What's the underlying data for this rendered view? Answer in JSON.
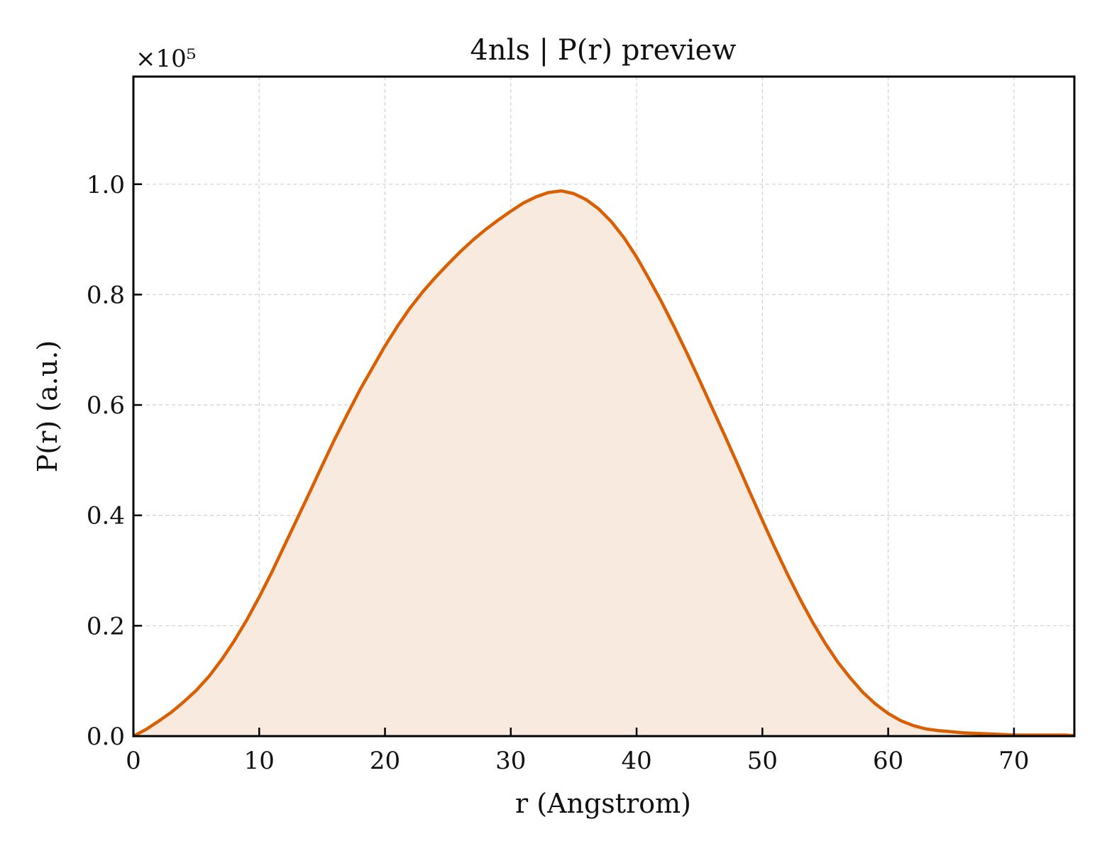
{
  "chart_data": {
    "type": "area",
    "title": "4nls | P(r) preview",
    "xlabel": "r (Angstrom)",
    "ylabel": "P(r) (a.u.)",
    "y_scale_label": "×10⁵",
    "xlim": [
      0,
      74.8
    ],
    "ylim": [
      0,
      1.195
    ],
    "x_ticks": [
      0,
      10,
      20,
      30,
      40,
      50,
      60,
      70
    ],
    "y_ticks": [
      0.0,
      0.2,
      0.4,
      0.6,
      0.8,
      1.0
    ],
    "x_tick_labels": [
      "0",
      "10",
      "20",
      "30",
      "40",
      "50",
      "60",
      "70"
    ],
    "y_tick_labels": [
      "0.0",
      "0.2",
      "0.4",
      "0.6",
      "0.8",
      "1.0"
    ],
    "grid": true,
    "series": [
      {
        "color": "#d95f02",
        "fill_color": "#f9eadf",
        "x": [
          0,
          1,
          2,
          3,
          4,
          5,
          6,
          7,
          8,
          9,
          10,
          11,
          12,
          13,
          14,
          15,
          16,
          17,
          18,
          19,
          20,
          21,
          22,
          23,
          24,
          25,
          26,
          27,
          28,
          29,
          30,
          31,
          32,
          33,
          34,
          35,
          36,
          37,
          38,
          39,
          40,
          41,
          42,
          43,
          44,
          45,
          46,
          47,
          48,
          49,
          50,
          51,
          52,
          53,
          54,
          55,
          56,
          57,
          58,
          59,
          60,
          61,
          62,
          63,
          64,
          65,
          66,
          67,
          68,
          69,
          70,
          71,
          72,
          73,
          74,
          74.8
        ],
        "y": [
          0.0,
          0.012,
          0.027,
          0.043,
          0.062,
          0.083,
          0.108,
          0.138,
          0.172,
          0.21,
          0.252,
          0.297,
          0.345,
          0.393,
          0.441,
          0.49,
          0.538,
          0.583,
          0.627,
          0.667,
          0.707,
          0.743,
          0.776,
          0.805,
          0.831,
          0.855,
          0.878,
          0.899,
          0.918,
          0.935,
          0.951,
          0.966,
          0.977,
          0.985,
          0.988,
          0.983,
          0.972,
          0.955,
          0.932,
          0.903,
          0.868,
          0.828,
          0.786,
          0.741,
          0.694,
          0.645,
          0.595,
          0.545,
          0.494,
          0.442,
          0.391,
          0.341,
          0.293,
          0.248,
          0.206,
          0.168,
          0.134,
          0.105,
          0.079,
          0.058,
          0.041,
          0.028,
          0.019,
          0.013,
          0.01,
          0.008,
          0.006,
          0.005,
          0.004,
          0.003,
          0.002,
          0.002,
          0.002,
          0.002,
          0.002,
          0.001
        ]
      }
    ]
  }
}
